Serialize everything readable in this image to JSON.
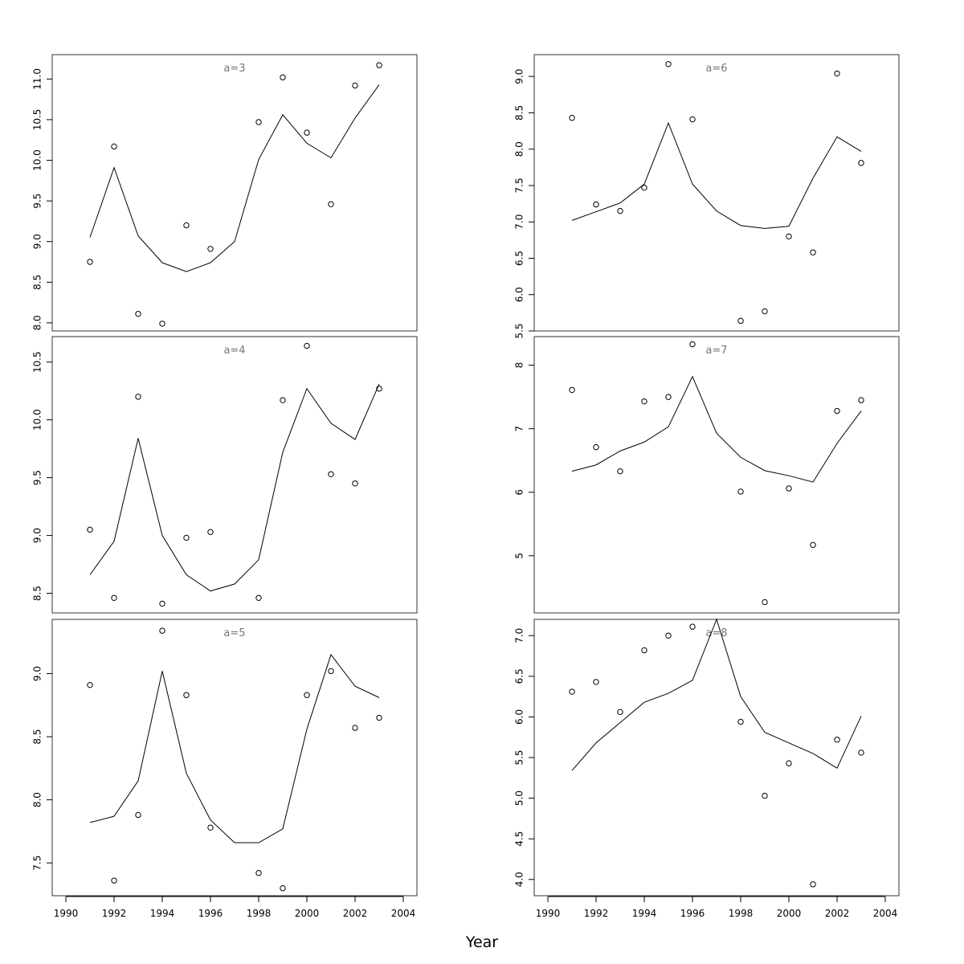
{
  "xlabel": "Year",
  "chart_data": [
    {
      "type": "scatter",
      "title": "a=3",
      "xlim": [
        1990,
        2004
      ],
      "ylim": [
        7.9,
        11.3
      ],
      "yticks": [
        "8.0",
        "8.5",
        "9.0",
        "9.5",
        "10.0",
        "10.5",
        "11.0"
      ],
      "xticks": [],
      "series": [
        {
          "kind": "points",
          "x": [
            1991,
            1992,
            1993,
            1994,
            1995,
            1996,
            1997,
            1998,
            1999,
            2000,
            2001,
            2002,
            2003
          ],
          "values": [
            8.75,
            10.17,
            8.11,
            7.99,
            9.2,
            8.91,
            null,
            10.47,
            11.02,
            10.34,
            9.46,
            10.92,
            11.17
          ]
        },
        {
          "kind": "line",
          "x": [
            1991,
            1992,
            1993,
            1994,
            1995,
            1996,
            1997,
            1998,
            1999,
            2000,
            2001,
            2002,
            2003
          ],
          "values": [
            9.05,
            9.91,
            9.07,
            8.74,
            8.63,
            8.74,
            9.0,
            10.01,
            10.56,
            10.21,
            10.03,
            10.52,
            10.93
          ]
        }
      ]
    },
    {
      "type": "scatter",
      "title": "a=6",
      "xlim": [
        1990,
        2004
      ],
      "ylim": [
        5.5,
        9.3
      ],
      "yticks": [
        "5.5",
        "6.0",
        "6.5",
        "7.0",
        "7.5",
        "8.0",
        "8.5",
        "9.0"
      ],
      "xticks": [],
      "series": [
        {
          "kind": "points",
          "x": [
            1991,
            1992,
            1993,
            1994,
            1995,
            1996,
            1997,
            1998,
            1999,
            2000,
            2001,
            2002,
            2003
          ],
          "values": [
            8.43,
            7.24,
            7.15,
            7.47,
            9.17,
            8.41,
            null,
            5.64,
            5.77,
            6.8,
            6.58,
            9.04,
            7.81
          ]
        },
        {
          "kind": "line",
          "x": [
            1991,
            1992,
            1993,
            1994,
            1995,
            1996,
            1997,
            1998,
            1999,
            2000,
            2001,
            2002,
            2003
          ],
          "values": [
            7.02,
            7.14,
            7.26,
            7.52,
            8.36,
            7.52,
            7.15,
            6.95,
            6.91,
            6.94,
            7.6,
            8.17,
            7.97
          ]
        }
      ]
    },
    {
      "type": "scatter",
      "title": "a=4",
      "xlim": [
        1990,
        2004
      ],
      "ylim": [
        8.33,
        10.72
      ],
      "yticks": [
        "8.5",
        "9.0",
        "9.5",
        "10.0",
        "10.5"
      ],
      "xticks": [],
      "series": [
        {
          "kind": "points",
          "x": [
            1991,
            1992,
            1993,
            1994,
            1995,
            1996,
            1997,
            1998,
            1999,
            2000,
            2001,
            2002,
            2003
          ],
          "values": [
            9.05,
            8.46,
            10.2,
            8.41,
            8.98,
            9.03,
            null,
            8.46,
            10.17,
            10.64,
            9.53,
            9.45,
            10.27
          ]
        },
        {
          "kind": "line",
          "x": [
            1991,
            1992,
            1993,
            1994,
            1995,
            1996,
            1997,
            1998,
            1999,
            2000,
            2001,
            2002,
            2003
          ],
          "values": [
            8.66,
            8.95,
            9.84,
            9.0,
            8.66,
            8.52,
            8.58,
            8.79,
            9.72,
            10.27,
            9.97,
            9.83,
            10.31
          ]
        }
      ]
    },
    {
      "type": "scatter",
      "title": "a=7",
      "xlim": [
        1990,
        2004
      ],
      "ylim": [
        4.1,
        8.45
      ],
      "yticks": [
        "5",
        "6",
        "7",
        "8"
      ],
      "xticks": [],
      "series": [
        {
          "kind": "points",
          "x": [
            1991,
            1992,
            1993,
            1994,
            1995,
            1996,
            1997,
            1998,
            1999,
            2000,
            2001,
            2002,
            2003
          ],
          "values": [
            7.61,
            6.71,
            6.33,
            7.43,
            7.5,
            8.33,
            null,
            6.01,
            4.27,
            6.06,
            5.17,
            7.28,
            7.45
          ]
        },
        {
          "kind": "line",
          "x": [
            1991,
            1992,
            1993,
            1994,
            1995,
            1996,
            1997,
            1998,
            1999,
            2000,
            2001,
            2002,
            2003
          ],
          "values": [
            6.33,
            6.43,
            6.65,
            6.79,
            7.03,
            7.82,
            6.93,
            6.55,
            6.34,
            6.26,
            6.16,
            6.77,
            7.28
          ]
        }
      ]
    },
    {
      "type": "scatter",
      "title": "a=5",
      "xlim": [
        1990,
        2004
      ],
      "ylim": [
        7.24,
        9.43
      ],
      "yticks": [
        "7.5",
        "8.0",
        "8.5",
        "9.0"
      ],
      "xticks": [
        "1990",
        "1992",
        "1994",
        "1996",
        "1998",
        "2000",
        "2002",
        "2004"
      ],
      "series": [
        {
          "kind": "points",
          "x": [
            1991,
            1992,
            1993,
            1994,
            1995,
            1996,
            1997,
            1998,
            1999,
            2000,
            2001,
            2002,
            2003
          ],
          "values": [
            8.91,
            7.36,
            7.88,
            9.34,
            8.83,
            7.78,
            null,
            7.42,
            7.3,
            8.83,
            9.02,
            8.57,
            8.65
          ]
        },
        {
          "kind": "line",
          "x": [
            1991,
            1992,
            1993,
            1994,
            1995,
            1996,
            1997,
            1998,
            1999,
            2000,
            2001,
            2002,
            2003
          ],
          "values": [
            7.82,
            7.87,
            8.15,
            9.02,
            8.21,
            7.84,
            7.66,
            7.66,
            7.77,
            8.56,
            9.15,
            8.9,
            8.81
          ]
        }
      ]
    },
    {
      "type": "scatter",
      "title": "a=8",
      "xlim": [
        1990,
        2004
      ],
      "ylim": [
        3.8,
        7.2
      ],
      "yticks": [
        "4.0",
        "4.5",
        "5.0",
        "5.5",
        "6.0",
        "6.5",
        "7.0"
      ],
      "xticks": [
        "1990",
        "1992",
        "1994",
        "1996",
        "1998",
        "2000",
        "2002",
        "2004"
      ],
      "series": [
        {
          "kind": "points",
          "x": [
            1991,
            1992,
            1993,
            1994,
            1995,
            1996,
            1997,
            1998,
            1999,
            2000,
            2001,
            2002,
            2003
          ],
          "values": [
            6.31,
            6.43,
            6.06,
            6.82,
            7.0,
            7.11,
            null,
            5.94,
            5.03,
            5.43,
            3.94,
            5.72,
            5.56
          ]
        },
        {
          "kind": "line",
          "x": [
            1991,
            1992,
            1993,
            1994,
            1995,
            1996,
            1997,
            1998,
            1999,
            2000,
            2001,
            2002,
            2003
          ],
          "values": [
            5.34,
            5.68,
            5.93,
            6.18,
            6.29,
            6.45,
            7.2,
            6.25,
            5.81,
            5.68,
            5.55,
            5.37,
            6.01
          ]
        }
      ]
    }
  ]
}
